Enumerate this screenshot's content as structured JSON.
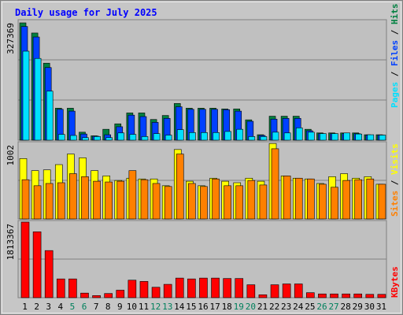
{
  "chart_data": {
    "type": "bar",
    "title": "Daily usage for July 2025",
    "categories": [
      "1",
      "2",
      "3",
      "4",
      "5",
      "6",
      "7",
      "8",
      "9",
      "10",
      "11",
      "12",
      "13",
      "14",
      "15",
      "16",
      "17",
      "18",
      "19",
      "20",
      "21",
      "22",
      "23",
      "24",
      "25",
      "26",
      "27",
      "28",
      "29",
      "30",
      "31"
    ],
    "weekend_days": [
      "5",
      "6",
      "12",
      "13",
      "19",
      "20",
      "26",
      "27"
    ],
    "panels": [
      {
        "name": "hits-files-pages",
        "scale_label": "327369",
        "ymax": 327369,
        "axis_label_parts": [
          {
            "text": "Pages",
            "color": "#00e0ff"
          },
          {
            "text": " / ",
            "color": "#000000"
          },
          {
            "text": "Files",
            "color": "#0040ff"
          },
          {
            "text": " / ",
            "color": "#000000"
          },
          {
            "text": "Hits",
            "color": "#008040"
          }
        ],
        "series": [
          {
            "name": "Hits",
            "color": "#008040",
            "values": [
              323000,
              295000,
              212000,
              88000,
              88000,
              22000,
              12000,
              30000,
              45000,
              75000,
              75000,
              57000,
              68000,
              101000,
              88000,
              88000,
              88000,
              86000,
              86000,
              56000,
              15000,
              66000,
              66000,
              66000,
              30000,
              20000,
              20000,
              20000,
              20000,
              15000,
              15000
            ]
          },
          {
            "name": "Files",
            "color": "#0040ff",
            "values": [
              313000,
              284000,
              200000,
              85000,
              80000,
              17000,
              11000,
              15000,
              37000,
              69000,
              65000,
              49000,
              60000,
              92000,
              85000,
              85000,
              85000,
              84000,
              80000,
              52000,
              13000,
              58000,
              60000,
              60000,
              26000,
              18000,
              18000,
              18000,
              18000,
              14000,
              14000
            ]
          },
          {
            "name": "Pages",
            "color": "#00e0ff",
            "values": [
              245000,
              225000,
              135000,
              16000,
              13000,
              7000,
              10000,
              7000,
              20000,
              16000,
              10000,
              18000,
              14000,
              29000,
              21000,
              21000,
              21000,
              24000,
              30000,
              10000,
              10000,
              22000,
              20000,
              34000,
              22000,
              18000,
              18000,
              20000,
              17000,
              15000,
              14000
            ]
          }
        ]
      },
      {
        "name": "visits-sites",
        "scale_label": "1002",
        "ymax": 1002,
        "axis_label_parts": [
          {
            "text": "Sites",
            "color": "#ff8000"
          },
          {
            "text": " / ",
            "color": "#000000"
          },
          {
            "text": "Visits",
            "color": "#ffff00"
          }
        ],
        "series": [
          {
            "name": "Visits",
            "color": "#ffff00",
            "values": [
              800,
              640,
              650,
              720,
              860,
              810,
              640,
              570,
              510,
              540,
              530,
              530,
              440,
              920,
              500,
              440,
              540,
              500,
              480,
              540,
              500,
              1000,
              570,
              540,
              530,
              470,
              560,
              600,
              540,
              560,
              460
            ]
          },
          {
            "name": "Sites",
            "color": "#ff8000",
            "values": [
              520,
              440,
              470,
              480,
              600,
              560,
              500,
              490,
              500,
              640,
              520,
              470,
              430,
              860,
              470,
              430,
              530,
              440,
              440,
              510,
              450,
              930,
              570,
              540,
              530,
              460,
              420,
              510,
              520,
              530,
              460
            ]
          }
        ]
      },
      {
        "name": "kbytes",
        "scale_label": "1813367",
        "ymax": 1813367,
        "axis_label_parts": [
          {
            "text": "KBytes",
            "color": "#ff0000"
          }
        ],
        "series": [
          {
            "name": "KBytes",
            "color": "#ff0000",
            "values": [
              1813000,
              1580000,
              1130000,
              450000,
              450000,
              110000,
              50000,
              100000,
              180000,
              420000,
              390000,
              250000,
              320000,
              470000,
              450000,
              470000,
              470000,
              460000,
              460000,
              310000,
              70000,
              310000,
              330000,
              330000,
              120000,
              90000,
              90000,
              90000,
              90000,
              80000,
              80000
            ]
          }
        ]
      }
    ]
  },
  "colors": {
    "title": "#0000ff",
    "weekday_label": "#000000",
    "weekend_label": "#00805c",
    "plot_bg": "#c0c0c0",
    "gridline": "#808080"
  }
}
